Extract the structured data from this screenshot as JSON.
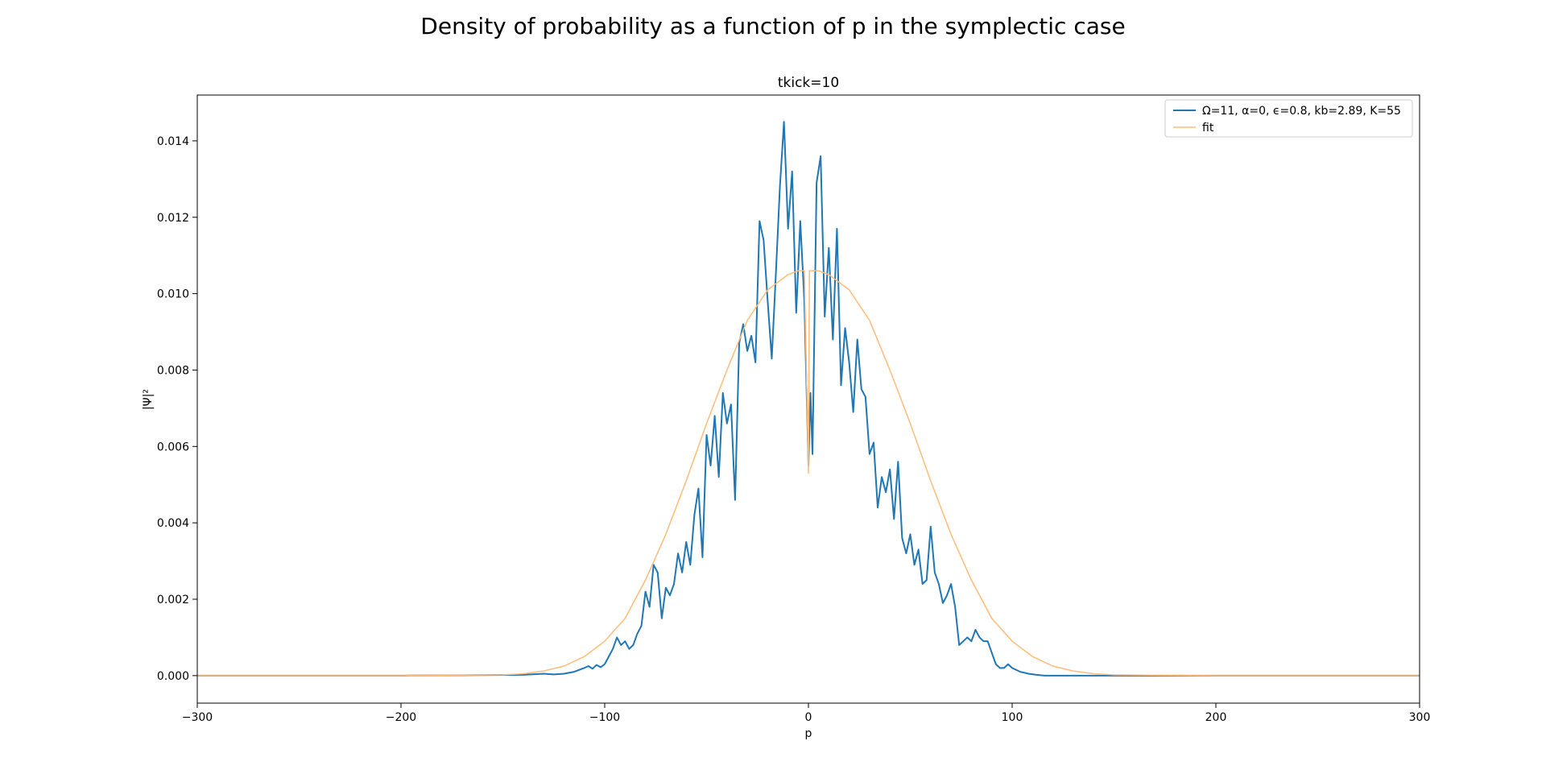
{
  "figure": {
    "suptitle": "Density of probability as a function of p in the symplectic case"
  },
  "chart_data": {
    "type": "line",
    "title": "tkick=10",
    "xlabel": "p",
    "ylabel": "|Ψ|²",
    "xlim": [
      -300,
      300
    ],
    "ylim": [
      -0.00072,
      0.0152
    ],
    "xticks": [
      -300,
      -200,
      -100,
      0,
      100,
      200,
      300
    ],
    "xtick_labels": [
      "−300",
      "−200",
      "−100",
      "0",
      "100",
      "200",
      "300"
    ],
    "yticks": [
      0.0,
      0.002,
      0.004,
      0.006,
      0.008,
      0.01,
      0.012,
      0.014
    ],
    "ytick_labels": [
      "0.000",
      "0.002",
      "0.004",
      "0.006",
      "0.008",
      "0.010",
      "0.012",
      "0.014"
    ],
    "grid": false,
    "legend_position": "top-right",
    "series": [
      {
        "name": "Ω=11, α=0, ϵ=0.8, kb=2.89, K=55",
        "color": "#1f77b4",
        "x": [
          -300,
          -200,
          -140,
          -130,
          -125,
          -120,
          -115,
          -110,
          -108,
          -106,
          -104,
          -102,
          -100,
          -98,
          -96,
          -94,
          -92,
          -90,
          -88,
          -86,
          -84,
          -82,
          -80,
          -78,
          -76,
          -74,
          -72,
          -70,
          -68,
          -66,
          -64,
          -62,
          -60,
          -58,
          -56,
          -54,
          -52,
          -50,
          -48,
          -46,
          -44,
          -42,
          -40,
          -38,
          -36,
          -34,
          -32,
          -30,
          -28,
          -26,
          -24,
          -22,
          -20,
          -18,
          -16,
          -14,
          -12,
          -10,
          -8,
          -6,
          -4,
          -2,
          0,
          1,
          2,
          4,
          6,
          8,
          10,
          12,
          14,
          16,
          18,
          20,
          22,
          24,
          26,
          28,
          30,
          32,
          34,
          36,
          38,
          40,
          42,
          44,
          46,
          48,
          50,
          52,
          54,
          56,
          58,
          60,
          62,
          64,
          66,
          68,
          70,
          72,
          74,
          76,
          78,
          80,
          82,
          84,
          86,
          88,
          90,
          92,
          94,
          96,
          98,
          100,
          104,
          108,
          112,
          116,
          120,
          125,
          130,
          135,
          140,
          150,
          200,
          300
        ],
        "y": [
          0.0,
          0.0,
          2e-05,
          5e-05,
          3e-05,
          5e-05,
          0.0001,
          0.0002,
          0.00025,
          0.00018,
          0.00028,
          0.00022,
          0.0003,
          0.0005,
          0.0007,
          0.001,
          0.0008,
          0.0009,
          0.0007,
          0.0008,
          0.0011,
          0.0013,
          0.0022,
          0.0018,
          0.0029,
          0.0027,
          0.0015,
          0.0023,
          0.0021,
          0.0024,
          0.0032,
          0.0027,
          0.0035,
          0.0029,
          0.0042,
          0.0049,
          0.0031,
          0.0063,
          0.0055,
          0.0068,
          0.0052,
          0.0074,
          0.0066,
          0.0071,
          0.0046,
          0.0087,
          0.0092,
          0.0085,
          0.0089,
          0.0082,
          0.0119,
          0.0114,
          0.0098,
          0.0083,
          0.0105,
          0.0128,
          0.0145,
          0.0117,
          0.0132,
          0.0095,
          0.0119,
          0.0098,
          0.0055,
          0.0074,
          0.0058,
          0.0129,
          0.0136,
          0.0094,
          0.0112,
          0.0088,
          0.0117,
          0.0076,
          0.0091,
          0.0082,
          0.0069,
          0.0088,
          0.0075,
          0.0073,
          0.0058,
          0.0061,
          0.0044,
          0.0052,
          0.0048,
          0.0054,
          0.0041,
          0.0056,
          0.0036,
          0.0032,
          0.0037,
          0.0029,
          0.0033,
          0.0024,
          0.0025,
          0.0039,
          0.0027,
          0.0024,
          0.0019,
          0.0021,
          0.0024,
          0.0018,
          0.0008,
          0.0009,
          0.001,
          0.0009,
          0.0012,
          0.001,
          0.0009,
          0.0009,
          0.0006,
          0.0003,
          0.0002,
          0.0002,
          0.0003,
          0.0002,
          0.0001,
          5e-05,
          2e-05,
          0.0,
          0.0,
          0.0,
          0.0,
          0.0,
          0.0,
          0.0,
          0.0,
          0.0
        ]
      },
      {
        "name": "fit",
        "color": "#ffbb78",
        "x": [
          -300,
          -200,
          -150,
          -140,
          -130,
          -120,
          -110,
          -100,
          -90,
          -80,
          -70,
          -60,
          -50,
          -40,
          -30,
          -20,
          -10,
          -5,
          -2,
          0,
          0.5,
          2,
          5,
          10,
          20,
          30,
          40,
          50,
          60,
          70,
          80,
          90,
          100,
          110,
          120,
          130,
          140,
          150,
          200,
          300
        ],
        "y": [
          0.0,
          0.0,
          2e-05,
          5e-05,
          0.00012,
          0.00025,
          0.0005,
          0.0009,
          0.0015,
          0.0025,
          0.0037,
          0.0051,
          0.0066,
          0.008,
          0.0093,
          0.0101,
          0.0105,
          0.0106,
          0.0106,
          0.0053,
          0.0106,
          0.0106,
          0.0106,
          0.0105,
          0.0101,
          0.0093,
          0.008,
          0.0066,
          0.0051,
          0.0037,
          0.0025,
          0.0015,
          0.0009,
          0.0005,
          0.00025,
          0.00012,
          5e-05,
          2e-05,
          0.0,
          0.0
        ]
      }
    ]
  }
}
